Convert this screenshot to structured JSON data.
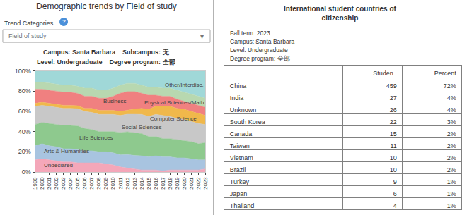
{
  "chart_data": [
    {
      "type": "area",
      "stacked": true,
      "title": "Demographic trends by Field of study",
      "subtitle": [
        "Campus: Santa Barbara    Subcampus: 无",
        "Level: Undergraduate    Degree program: 全部"
      ],
      "annotations": [
        "Trend Categories",
        "?",
        "Field of study",
        "▾"
      ],
      "x": [
        1999,
        2000,
        2001,
        2002,
        2003,
        2004,
        2005,
        2006,
        2007,
        2008,
        2009,
        2010,
        2011,
        2012,
        2013,
        2014,
        2015,
        2016,
        2017,
        2018,
        2019,
        2020,
        2021,
        2022,
        2023
      ],
      "xlim": [
        1999,
        2023
      ],
      "xticks": [
        1999,
        2000,
        2001,
        2002,
        2003,
        2004,
        2005,
        2006,
        2007,
        2008,
        2009,
        2010,
        2011,
        2012,
        2013,
        2014,
        2015,
        2016,
        2017,
        2018,
        2019,
        2020,
        2021,
        2022,
        2023
      ],
      "ylim": [
        0,
        100
      ],
      "yticks": [
        {
          "value": 0,
          "label": "0%"
        },
        {
          "value": 20,
          "label": "20%"
        },
        {
          "value": 40,
          "label": "40%"
        },
        {
          "value": 60,
          "label": "60%"
        },
        {
          "value": 80,
          "label": "80%"
        },
        {
          "value": 100,
          "label": "100%"
        }
      ],
      "grid": false,
      "series": [
        {
          "name": "Undeclared",
          "color": "#f4a7b9",
          "values": [
            12,
            13,
            12,
            11,
            10,
            10,
            9.0909,
            9,
            9,
            9,
            8,
            7,
            5,
            4.0816,
            3.0612,
            2,
            2,
            2,
            1,
            2,
            2,
            2,
            2,
            2,
            3
          ]
        },
        {
          "name": "Arts & Humanities",
          "color": "#a8c4e0",
          "values": [
            14,
            15,
            14,
            14,
            13,
            13,
            13.1313,
            12,
            12,
            11,
            12,
            12,
            12,
            13.2653,
            13.2653,
            14,
            13,
            14,
            14,
            13,
            12,
            12,
            11,
            10,
            9
          ]
        },
        {
          "name": "Life Sciences",
          "color": "#8ec98e",
          "values": [
            21,
            21,
            22,
            22,
            23,
            23,
            23.2323,
            22,
            21,
            20,
            20,
            21,
            22,
            22.449,
            22.449,
            22,
            20,
            19,
            18,
            18,
            18,
            17,
            17,
            16,
            17
          ]
        },
        {
          "name": "Social Sciences",
          "color": "#c8c8c8",
          "values": [
            18,
            17,
            17,
            17,
            17,
            17,
            17.1717,
            17,
            17,
            17,
            17,
            17,
            17,
            17.3469,
            18.3673,
            19,
            20,
            22,
            23,
            22,
            21,
            21,
            20,
            20,
            18
          ]
        },
        {
          "name": "Computer Science",
          "color": "#f0b84b",
          "values": [
            3,
            3,
            3,
            3,
            3,
            3,
            3.0303,
            3,
            4,
            4,
            4,
            4,
            4,
            4.0816,
            5.102,
            6,
            7,
            8,
            9,
            10,
            10,
            10,
            10,
            10,
            9
          ]
        },
        {
          "name": "Business",
          "color": "#f08080",
          "values": [
            14,
            13,
            13,
            13,
            13,
            13,
            12.1212,
            12,
            12,
            12,
            12,
            14,
            18,
            18.3673,
            17.3469,
            15,
            14,
            11,
            10,
            10,
            9,
            8,
            8,
            8,
            8
          ]
        },
        {
          "name": "Physical Sciences/Math",
          "color": "#b8d8b0",
          "values": [
            7,
            7,
            7,
            7,
            7,
            7,
            7.0707,
            8,
            8,
            8,
            8,
            8,
            8,
            8.1633,
            8.1633,
            8,
            8,
            8,
            8,
            8,
            9,
            9,
            9,
            9,
            9
          ]
        },
        {
          "name": "Other/Interdisc.",
          "color": "#a0d8d8",
          "values": [
            11,
            11,
            12,
            13,
            14,
            14,
            15.1515,
            17,
            17,
            19,
            19,
            17,
            14,
            12.2449,
            12.2449,
            14,
            16,
            16,
            17,
            17,
            19,
            21,
            23,
            25,
            27
          ]
        }
      ]
    },
    {
      "type": "table",
      "title": "International student countries of\ncitizenship",
      "subtitle": [
        "Fall term: 2023",
        "Campus: Santa Barbara",
        "Level: Undergraduate",
        "Degree program: 全部"
      ],
      "categories": [
        "China",
        "India",
        "Unknown",
        "South Korea",
        "Canada",
        "Taiwan",
        "Vietnam",
        "Brazil",
        "Turkey",
        "Japan",
        "Thailand"
      ],
      "series": [
        {
          "name": "Studen..",
          "values": [
            459,
            27,
            26,
            22,
            15,
            11,
            10,
            10,
            9,
            6,
            4
          ]
        },
        {
          "name": "Percent",
          "values": [
            72,
            4,
            4,
            3,
            2,
            2,
            2,
            2,
            1,
            1,
            1
          ],
          "value_labels": [
            "72%",
            "4%",
            "4%",
            "3%",
            "2%",
            "2%",
            "2%",
            "2%",
            "1%",
            "1%",
            "1%"
          ]
        }
      ]
    }
  ]
}
